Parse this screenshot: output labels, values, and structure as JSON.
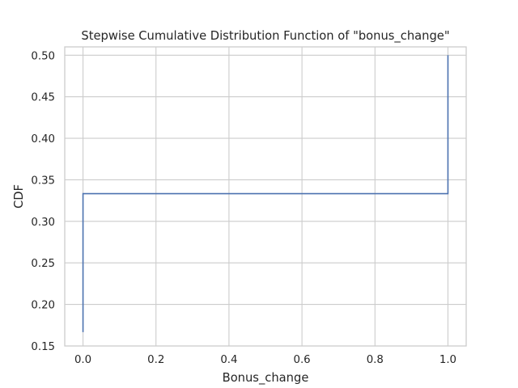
{
  "chart_data": {
    "type": "line",
    "style": "step",
    "title": "Stepwise Cumulative Distribution Function of \"bonus_change\"",
    "xlabel": "Bonus_change",
    "ylabel": "CDF",
    "xlim": [
      -0.05,
      1.05
    ],
    "ylim": [
      0.15,
      0.51
    ],
    "grid": true,
    "xticks": [
      0.0,
      0.2,
      0.4,
      0.6,
      0.8,
      1.0
    ],
    "xtick_labels": [
      "0.0",
      "0.2",
      "0.4",
      "0.6",
      "0.8",
      "1.0"
    ],
    "yticks": [
      0.15,
      0.2,
      0.25,
      0.3,
      0.35,
      0.4,
      0.45,
      0.5
    ],
    "ytick_labels": [
      "0.15",
      "0.20",
      "0.25",
      "0.30",
      "0.35",
      "0.40",
      "0.45",
      "0.50"
    ],
    "series": [
      {
        "name": "bonus_change",
        "color": "#4c72b0",
        "x": [
          0.0,
          0.0,
          1.0,
          1.0
        ],
        "y": [
          0.1667,
          0.3333,
          0.3333,
          0.5
        ]
      }
    ]
  }
}
